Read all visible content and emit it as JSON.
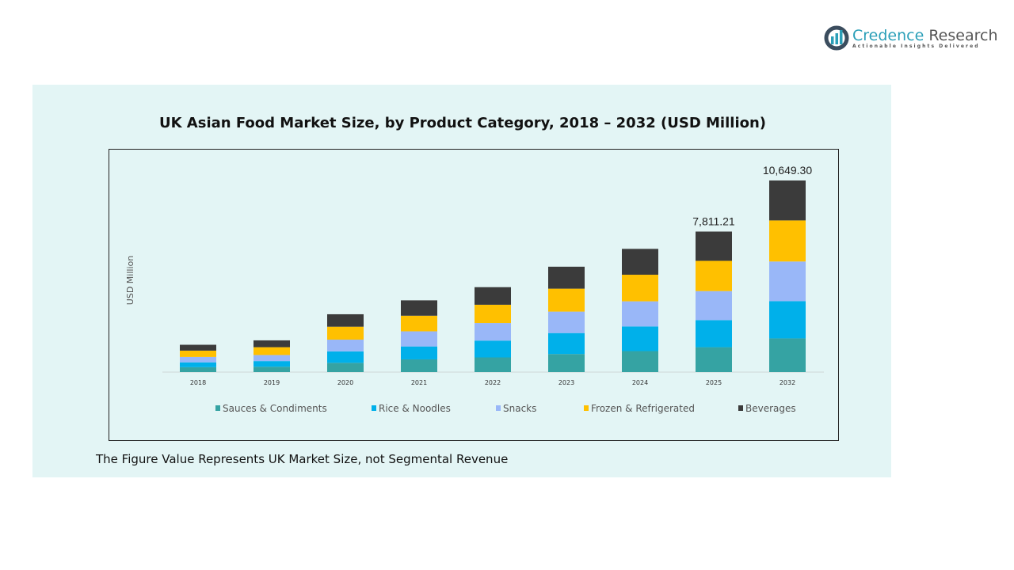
{
  "logo": {
    "name_part1": "Credence",
    "name_part2": "Research",
    "tagline": "Actionable Insights Delivered"
  },
  "footer_note": "The Figure Value Represents UK Market Size, not Segmental Revenue",
  "chart_data": {
    "type": "bar",
    "stacked": true,
    "title": "UK Asian Food Market Size, by Product Category, 2018 – 2032 (USD Million)",
    "xlabel": "",
    "ylabel": "USD Million",
    "ylim": [
      0,
      11000
    ],
    "grid": false,
    "legend_position": "bottom",
    "categories": [
      "2018",
      "2019",
      "2020",
      "2021",
      "2022",
      "2023",
      "2024",
      "2025",
      "2032"
    ],
    "series": [
      {
        "name": "Sauces & Condiments",
        "color": "#35a3a3",
        "values": [
          271,
          298,
          515,
          705,
          814,
          1003,
          1166,
          1383,
          1873
        ]
      },
      {
        "name": "Rice & Noodles",
        "color": "#00b0ea",
        "values": [
          271,
          312,
          637,
          719,
          936,
          1166,
          1370,
          1505,
          2071
        ]
      },
      {
        "name": "Snacks",
        "color": "#99b7f8",
        "values": [
          298,
          339,
          651,
          841,
          976,
          1193,
          1397,
          1614,
          2202
        ]
      },
      {
        "name": "Frozen & Refrigerated",
        "color": "#ffc000",
        "values": [
          353,
          434,
          719,
          868,
          1017,
          1275,
          1478,
          1681,
          2284
        ]
      },
      {
        "name": "Beverages",
        "color": "#3b3b3b",
        "values": [
          325,
          380,
          692,
          854,
          976,
          1220,
          1437,
          1627,
          2219
        ]
      }
    ],
    "data_labels": [
      {
        "category": "2025",
        "text": "7,811.21"
      },
      {
        "category": "2032",
        "text": "10,649.30"
      }
    ]
  }
}
